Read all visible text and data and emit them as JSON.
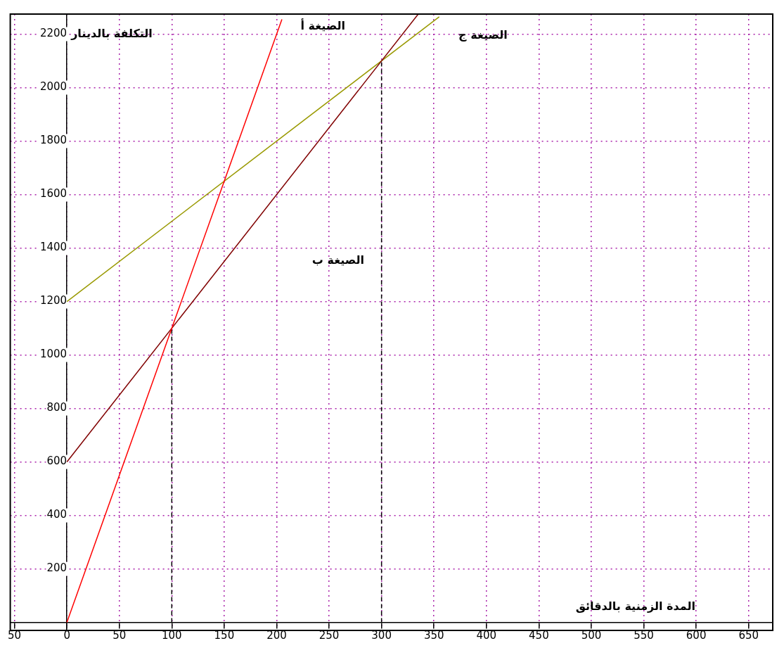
{
  "chart_data": {
    "type": "line",
    "xlabel": "المدة الزمنية بالدقائق",
    "ylabel": "التكلفة بالدينار",
    "xlim": [
      -54,
      673
    ],
    "ylim": [
      -30,
      2275
    ],
    "xticks": [
      {
        "value": -50,
        "label": "50"
      },
      0,
      50,
      100,
      150,
      200,
      250,
      300,
      350,
      400,
      450,
      500,
      550,
      600,
      650
    ],
    "yticks": [
      200,
      400,
      600,
      800,
      1000,
      1200,
      1400,
      1600,
      1800,
      2000,
      2200
    ],
    "grid": true,
    "legend": false,
    "marker": "none",
    "series": [
      {
        "x": [
          0,
          205
        ],
        "values": [
          0,
          2255
        ],
        "color": "#ff0000"
      },
      {
        "x": [
          0,
          335
        ],
        "values": [
          600,
          2275
        ],
        "color": "#800000"
      },
      {
        "x": [
          0,
          355
        ],
        "values": [
          1200,
          2265
        ],
        "color": "#999900"
      },
      {
        "x": [
          100,
          100
        ],
        "values": [
          0,
          1100
        ],
        "color": "#000000",
        "line_style": "dashed"
      },
      {
        "x": [
          300,
          300
        ],
        "values": [
          0,
          2100
        ],
        "color": "#000000",
        "line_style": "dashed"
      }
    ],
    "annotations": [
      "الصيغة أ",
      "الصيغة ب",
      "الصيغة ج"
    ]
  }
}
